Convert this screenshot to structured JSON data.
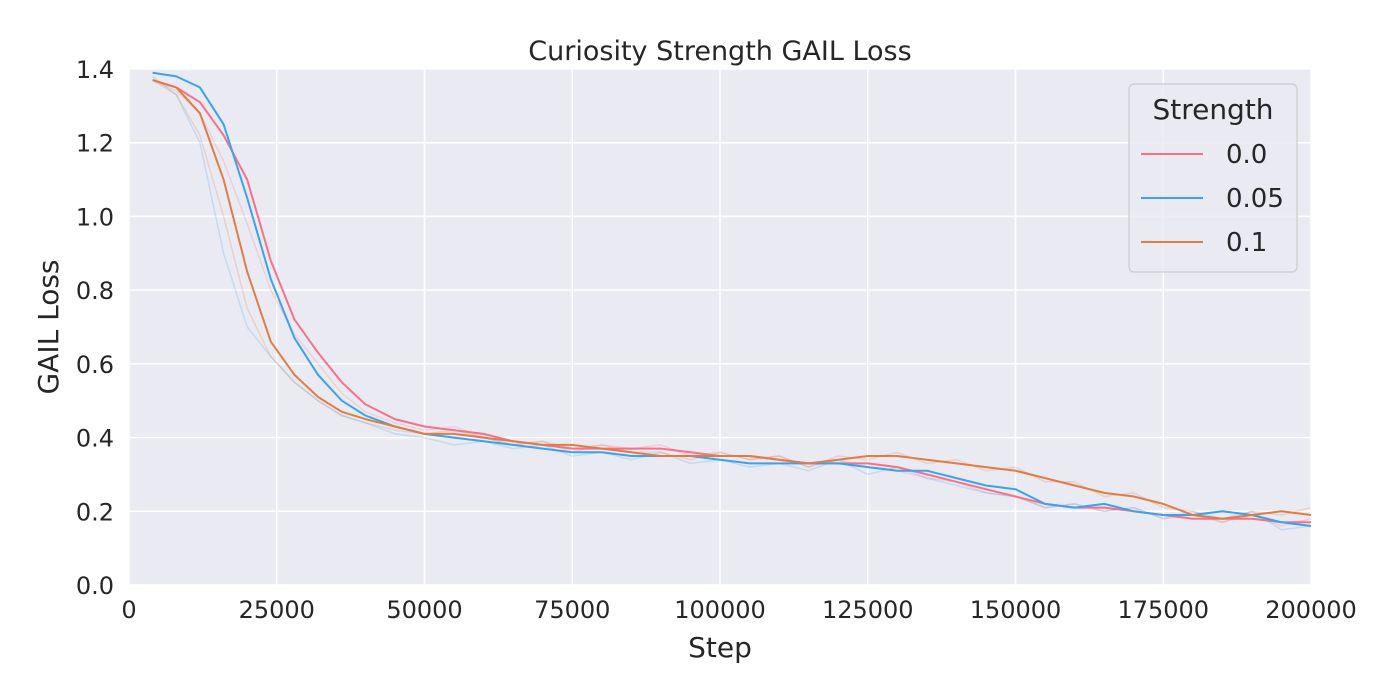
{
  "chart_data": {
    "type": "line",
    "title": "Curiosity Strength GAIL Loss",
    "xlabel": "Step",
    "ylabel": "GAIL Loss",
    "xlim": [
      0,
      200000
    ],
    "ylim": [
      0.0,
      1.4
    ],
    "x_ticks": [
      "0",
      "25000",
      "50000",
      "75000",
      "100000",
      "125000",
      "150000",
      "175000",
      "200000"
    ],
    "y_ticks": [
      "0.0",
      "0.2",
      "0.4",
      "0.6",
      "0.8",
      "1.0",
      "1.2",
      "1.4"
    ],
    "x_tick_values": [
      0,
      25000,
      50000,
      75000,
      100000,
      125000,
      150000,
      175000,
      200000
    ],
    "y_tick_values": [
      0.0,
      0.2,
      0.4,
      0.6,
      0.8,
      1.0,
      1.2,
      1.4
    ],
    "grid": true,
    "background": "#eaeaf2",
    "legend": {
      "title": "Strength",
      "placement": "top-right"
    },
    "series": [
      {
        "name": "0.0",
        "color": "#f77189",
        "x": [
          4000,
          8000,
          12000,
          16000,
          20000,
          24000,
          28000,
          32000,
          36000,
          40000,
          45000,
          50000,
          55000,
          60000,
          65000,
          70000,
          75000,
          80000,
          85000,
          90000,
          95000,
          100000,
          105000,
          110000,
          115000,
          120000,
          125000,
          130000,
          135000,
          140000,
          145000,
          150000,
          155000,
          160000,
          165000,
          170000,
          175000,
          180000,
          185000,
          190000,
          195000,
          200000
        ],
        "smoothed": [
          1.37,
          1.35,
          1.31,
          1.22,
          1.1,
          0.88,
          0.72,
          0.63,
          0.55,
          0.49,
          0.45,
          0.43,
          0.42,
          0.41,
          0.39,
          0.38,
          0.37,
          0.37,
          0.37,
          0.37,
          0.36,
          0.35,
          0.35,
          0.34,
          0.33,
          0.33,
          0.33,
          0.32,
          0.3,
          0.28,
          0.26,
          0.24,
          0.22,
          0.21,
          0.21,
          0.2,
          0.19,
          0.18,
          0.18,
          0.18,
          0.17,
          0.17
        ],
        "raw": [
          1.37,
          1.34,
          1.28,
          1.15,
          0.98,
          0.8,
          0.68,
          0.6,
          0.52,
          0.47,
          0.44,
          0.42,
          0.43,
          0.4,
          0.38,
          0.39,
          0.36,
          0.38,
          0.37,
          0.38,
          0.35,
          0.36,
          0.34,
          0.35,
          0.32,
          0.34,
          0.32,
          0.31,
          0.29,
          0.28,
          0.25,
          0.24,
          0.21,
          0.22,
          0.2,
          0.21,
          0.18,
          0.19,
          0.17,
          0.19,
          0.16,
          0.18
        ]
      },
      {
        "name": "0.05",
        "color": "#3ba3ec",
        "x": [
          4000,
          8000,
          12000,
          16000,
          20000,
          24000,
          28000,
          32000,
          36000,
          40000,
          45000,
          50000,
          55000,
          60000,
          65000,
          70000,
          75000,
          80000,
          85000,
          90000,
          95000,
          100000,
          105000,
          110000,
          115000,
          120000,
          125000,
          130000,
          135000,
          140000,
          145000,
          150000,
          155000,
          160000,
          165000,
          170000,
          175000,
          180000,
          185000,
          190000,
          195000,
          200000
        ],
        "smoothed": [
          1.39,
          1.38,
          1.35,
          1.25,
          1.05,
          0.83,
          0.67,
          0.57,
          0.5,
          0.46,
          0.43,
          0.41,
          0.4,
          0.39,
          0.38,
          0.37,
          0.36,
          0.36,
          0.35,
          0.35,
          0.35,
          0.34,
          0.33,
          0.33,
          0.33,
          0.33,
          0.32,
          0.31,
          0.31,
          0.29,
          0.27,
          0.26,
          0.22,
          0.21,
          0.22,
          0.2,
          0.19,
          0.19,
          0.2,
          0.19,
          0.17,
          0.16
        ],
        "raw": [
          1.38,
          1.33,
          1.2,
          0.9,
          0.7,
          0.62,
          0.55,
          0.5,
          0.46,
          0.44,
          0.41,
          0.4,
          0.38,
          0.39,
          0.37,
          0.38,
          0.35,
          0.36,
          0.34,
          0.36,
          0.33,
          0.34,
          0.32,
          0.33,
          0.31,
          0.34,
          0.3,
          0.32,
          0.29,
          0.27,
          0.25,
          0.24,
          0.21,
          0.22,
          0.2,
          0.21,
          0.18,
          0.2,
          0.18,
          0.2,
          0.15,
          0.16
        ]
      },
      {
        "name": "0.1",
        "color": "#e07d45",
        "x": [
          4000,
          8000,
          12000,
          16000,
          20000,
          24000,
          28000,
          32000,
          36000,
          40000,
          45000,
          50000,
          55000,
          60000,
          65000,
          70000,
          75000,
          80000,
          85000,
          90000,
          95000,
          100000,
          105000,
          110000,
          115000,
          120000,
          125000,
          130000,
          135000,
          140000,
          145000,
          150000,
          155000,
          160000,
          165000,
          170000,
          175000,
          180000,
          185000,
          190000,
          195000,
          200000
        ],
        "smoothed": [
          1.37,
          1.35,
          1.28,
          1.1,
          0.85,
          0.66,
          0.57,
          0.51,
          0.47,
          0.45,
          0.43,
          0.41,
          0.41,
          0.4,
          0.39,
          0.38,
          0.38,
          0.37,
          0.36,
          0.35,
          0.35,
          0.35,
          0.35,
          0.34,
          0.33,
          0.34,
          0.35,
          0.35,
          0.34,
          0.33,
          0.32,
          0.31,
          0.29,
          0.27,
          0.25,
          0.24,
          0.22,
          0.19,
          0.18,
          0.19,
          0.2,
          0.19
        ],
        "raw": [
          1.37,
          1.33,
          1.22,
          1.0,
          0.75,
          0.62,
          0.55,
          0.5,
          0.46,
          0.44,
          0.42,
          0.41,
          0.42,
          0.4,
          0.38,
          0.39,
          0.37,
          0.38,
          0.36,
          0.36,
          0.34,
          0.36,
          0.34,
          0.35,
          0.32,
          0.35,
          0.34,
          0.36,
          0.33,
          0.34,
          0.31,
          0.32,
          0.28,
          0.28,
          0.24,
          0.25,
          0.21,
          0.2,
          0.17,
          0.2,
          0.19,
          0.21
        ]
      }
    ]
  }
}
